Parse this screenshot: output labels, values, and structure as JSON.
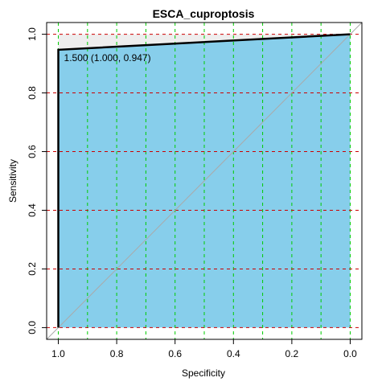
{
  "chart_data": {
    "type": "roc",
    "title": "ESCA_cuproptosis",
    "x_label": "Specificity",
    "y_label": "Sensitivity",
    "series": [
      {
        "name": "ROC",
        "color": "#000000",
        "x": [
          1.0,
          1.0,
          0.0
        ],
        "values": [
          0.0,
          0.947,
          1.0
        ]
      }
    ],
    "area_color": "#87ceeb",
    "above_color": "#eeeeee",
    "annotation": "1.500 (1.000, 0.947)",
    "xlim": [
      1.04,
      -0.04
    ],
    "ylim": [
      -0.04,
      1.04
    ],
    "xticks": [
      {
        "value": 1.0,
        "label": "1.0"
      },
      {
        "value": 0.8,
        "label": "0.8"
      },
      {
        "value": 0.6,
        "label": "0.6"
      },
      {
        "value": 0.4,
        "label": "0.4"
      },
      {
        "value": 0.2,
        "label": "0.2"
      },
      {
        "value": 0.0,
        "label": "0.0"
      }
    ],
    "yticks": [
      {
        "value": 0.0,
        "label": "0.0"
      },
      {
        "value": 0.2,
        "label": "0.2"
      },
      {
        "value": 0.4,
        "label": "0.4"
      },
      {
        "value": 0.6,
        "label": "0.6"
      },
      {
        "value": 0.8,
        "label": "0.8"
      },
      {
        "value": 1.0,
        "label": "1.0"
      }
    ],
    "xgrid": [
      1.0,
      0.9,
      0.8,
      0.7,
      0.6,
      0.5,
      0.4,
      0.3,
      0.2,
      0.1,
      0.0
    ],
    "xgrid_color": "#00cc00",
    "ygrid": [
      0.0,
      0.2,
      0.4,
      0.6,
      0.8,
      1.0
    ],
    "ygrid_color": "#cc0000"
  }
}
